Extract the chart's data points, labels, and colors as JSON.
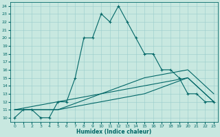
{
  "xlabel": "Humidex (Indice chaleur)",
  "xlim": [
    -0.5,
    23.5
  ],
  "ylim": [
    9.5,
    24.5
  ],
  "yticks": [
    10,
    11,
    12,
    13,
    14,
    15,
    16,
    17,
    18,
    19,
    20,
    21,
    22,
    23,
    24
  ],
  "xticks": [
    0,
    1,
    2,
    3,
    4,
    5,
    6,
    7,
    8,
    9,
    10,
    11,
    12,
    13,
    14,
    15,
    16,
    17,
    18,
    19,
    20,
    21,
    22,
    23
  ],
  "bg_color": "#c8e8e0",
  "line_color": "#006666",
  "grid_color": "#99cccc",
  "line1_x": [
    0,
    1,
    2,
    3,
    4,
    5,
    6,
    7,
    8,
    9,
    10,
    11,
    12,
    13,
    14,
    15,
    16,
    17,
    18,
    19,
    20,
    21,
    22,
    23
  ],
  "line1_y": [
    10,
    11,
    11,
    10,
    10,
    12,
    12,
    15,
    20,
    20,
    23,
    22,
    24,
    22,
    20,
    18,
    18,
    16,
    16,
    15,
    13,
    13,
    12,
    12
  ],
  "line2_x": [
    0,
    5,
    10,
    15,
    20,
    23
  ],
  "line2_y": [
    11,
    11,
    13,
    14,
    15,
    12
  ],
  "line3_x": [
    0,
    5,
    10,
    15,
    20,
    23
  ],
  "line3_y": [
    11,
    12,
    13,
    15,
    16,
    13
  ],
  "line4_x": [
    0,
    5,
    10,
    15,
    20,
    23
  ],
  "line4_y": [
    11,
    11,
    12,
    13,
    15,
    12
  ]
}
